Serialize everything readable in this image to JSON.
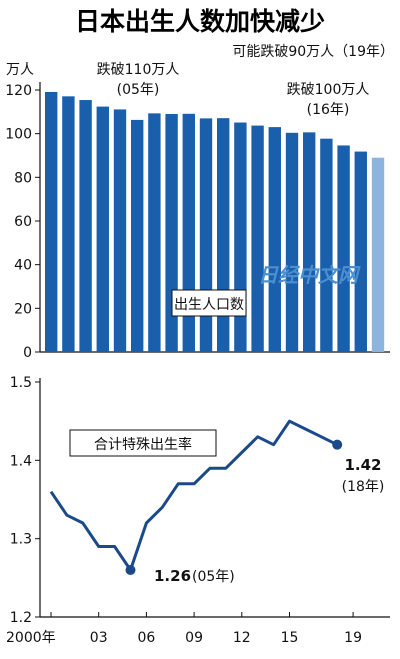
{
  "title": "日本出生人数加快减少",
  "watermark": "日经中文网",
  "colors": {
    "bar": "#1a5fab",
    "bar_estimate": "#8cb4dc",
    "line": "#1b4a8a",
    "watermark": "#4a8fd0"
  },
  "chart_data": [
    {
      "type": "bar",
      "unit": "万人",
      "series_label": "出生人口数",
      "categories": [
        "2000",
        "2001",
        "2002",
        "2003",
        "2004",
        "2005",
        "2006",
        "2007",
        "2008",
        "2009",
        "2010",
        "2011",
        "2012",
        "2013",
        "2014",
        "2015",
        "2016",
        "2017",
        "2018",
        "2019"
      ],
      "values": [
        119.1,
        117.1,
        115.4,
        112.4,
        111.1,
        106.3,
        109.3,
        109.0,
        109.1,
        107.0,
        107.1,
        105.1,
        103.7,
        103.0,
        100.4,
        100.6,
        97.7,
        94.6,
        91.8,
        89.0
      ],
      "estimate_index": 19,
      "ylim": [
        0,
        120
      ],
      "yticks": [
        "0",
        "20",
        "40",
        "60",
        "80",
        "100",
        "120"
      ],
      "annotations": [
        {
          "line1": "跌破110万人",
          "line2": "(05年)"
        },
        {
          "line1": "可能跌破90万人（19年）",
          "line2": ""
        },
        {
          "line1": "跌破100万人",
          "line2": "(16年)"
        }
      ]
    },
    {
      "type": "line",
      "series_label": "合计特殊出生率",
      "x": [
        "2000",
        "2001",
        "2002",
        "2003",
        "2004",
        "2005",
        "2006",
        "2007",
        "2008",
        "2009",
        "2010",
        "2011",
        "2012",
        "2013",
        "2014",
        "2015",
        "2016",
        "2017",
        "2018"
      ],
      "values": [
        1.36,
        1.33,
        1.32,
        1.29,
        1.29,
        1.26,
        1.32,
        1.34,
        1.37,
        1.37,
        1.39,
        1.39,
        1.41,
        1.43,
        1.42,
        1.45,
        1.44,
        1.43,
        1.42
      ],
      "ylim": [
        1.2,
        1.5
      ],
      "yticks": [
        "1.2",
        "1.3",
        "1.4",
        "1.5"
      ],
      "xticks": [
        "2000年",
        "03",
        "06",
        "09",
        "12",
        "15",
        "19"
      ],
      "annotations": [
        {
          "value": "1.26",
          "note": "(05年)"
        },
        {
          "value": "1.42",
          "note": "(18年)"
        }
      ]
    }
  ]
}
